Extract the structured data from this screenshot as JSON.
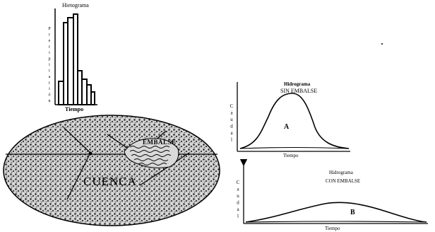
{
  "hyetograph": {
    "title": "Hietograma",
    "ylabel_letters": [
      "P",
      "r",
      "e",
      "c",
      "i",
      "p",
      "i",
      "t",
      "a",
      "c",
      "i",
      "ó",
      "n"
    ],
    "xlabel": "Tiempo"
  },
  "basin": {
    "label": "CUENCA",
    "reservoir_label": "EMBALSE"
  },
  "hydrograph_without": {
    "title_line1": "Hidrograma",
    "title_line2": "SIN EMBALSE",
    "ylabel_letters": [
      "C",
      "a",
      "u",
      "d",
      "a",
      "l"
    ],
    "xlabel": "Tiempo",
    "area_label": "A"
  },
  "hydrograph_with": {
    "title_line1": "Hidrograma",
    "title_line2": "CON EMBALSE",
    "ylabel_letters": [
      "C",
      "a",
      "u",
      "d",
      "a",
      "l"
    ],
    "xlabel": "Tiempo",
    "area_label": "B"
  },
  "colors": {
    "ink": "#000000",
    "speckle_bg": "#cfcfcf",
    "background": "#ffffff"
  }
}
